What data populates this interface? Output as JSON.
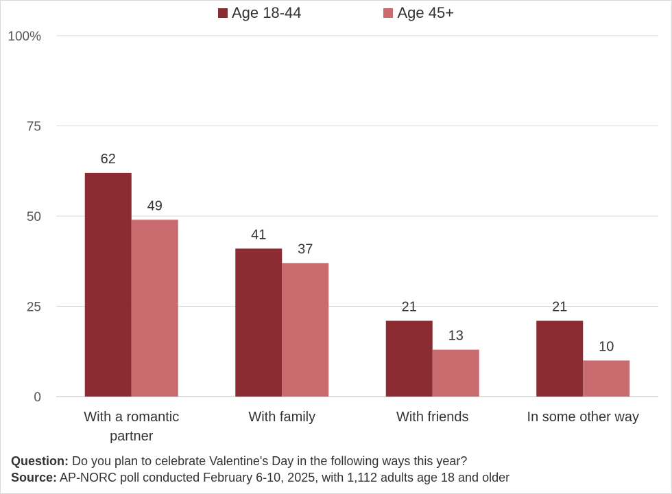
{
  "chart_data": {
    "type": "bar",
    "categories": [
      "With a romantic partner",
      "With family",
      "With friends",
      "In some other way"
    ],
    "category_lines": [
      [
        "With a romantic",
        "partner"
      ],
      [
        "With family"
      ],
      [
        "With friends"
      ],
      [
        "In some other way"
      ]
    ],
    "series": [
      {
        "name": "Age 18-44",
        "values": [
          62,
          41,
          21,
          21
        ],
        "color": "#8b2c32"
      },
      {
        "name": "Age 45+",
        "values": [
          49,
          37,
          13,
          10
        ],
        "color": "#c96b6f"
      }
    ],
    "yticks": [
      "0",
      "25",
      "50",
      "75",
      "100%"
    ],
    "ytick_values": [
      0,
      25,
      50,
      75,
      100
    ],
    "ylim": [
      0,
      100
    ],
    "grid": true,
    "legend_position": "top-center"
  },
  "footnote": {
    "question_label": "Question:",
    "question_text": " Do you plan to celebrate Valentine's Day in the following ways this year?",
    "source_label": "Source:",
    "source_text": " AP-NORC poll conducted February 6-10, 2025, with 1,112 adults age 18 and older"
  }
}
